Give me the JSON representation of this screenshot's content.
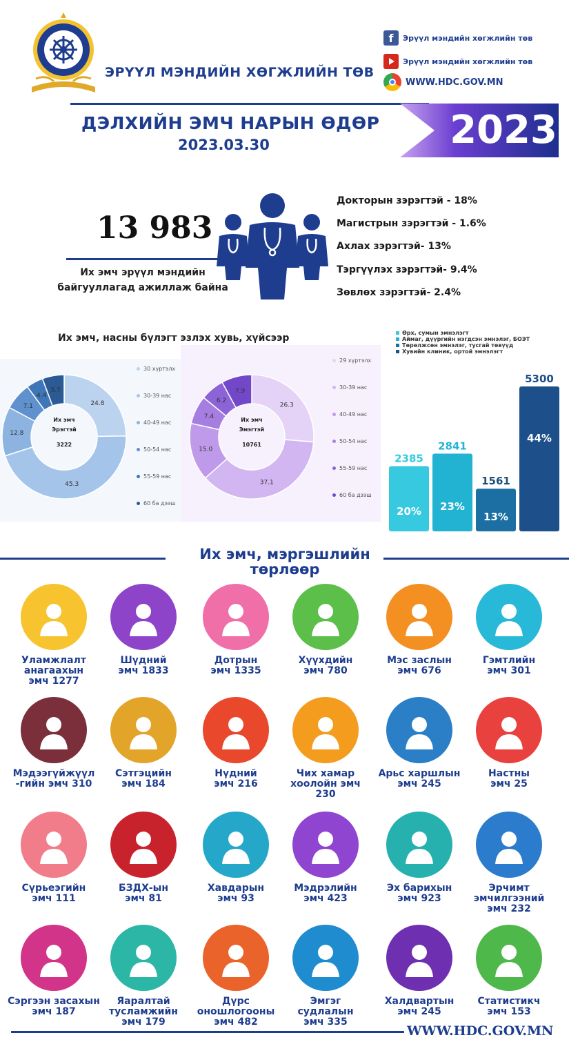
{
  "header": {
    "org_name": "ЭРҮҮЛ МЭНДИЙН ХӨГЖЛИЙН ТӨВ",
    "logo_ring_text": "ЭРҮҮЛ МЭНДИЙН ХӨГЖЛИЙН ТӨВ",
    "facebook": "Эрүүл мэндийн хөгжлийн төв",
    "youtube": "Эрүүл мэндийн хөгжлийн төв",
    "website": "WWW.HDC.GOV.MN",
    "title": "ДЭЛХИЙН ЭМЧ НАРЫН ӨДӨР",
    "date": "2023.03.30",
    "year": "2023"
  },
  "stats": {
    "total": "13 983",
    "total_desc_1": "Их эмч эрүүл мэндийн",
    "total_desc_2": "байгууллагад ажиллаж байна",
    "degrees": [
      "Докторын зэрэгтэй - 18%",
      "Магистрын зэрэгтэй - 1.6%",
      "Ахлах зэрэгтэй- 13%",
      "Тэргүүлэх зэрэгтэй- 9.4%",
      "Зөвлөх зэрэгтэй- 2.4%"
    ]
  },
  "donut_section_title": "Их эмч, насны бүлэгт эзлэх хувь, хүйсээр",
  "chart_data": [
    {
      "type": "pie",
      "variant": "donut",
      "center_label_1": "Их эмч",
      "center_label_2": "Эрэгтэй",
      "center_value": "3222",
      "categories": [
        "30 хүртэлх",
        "30-39 нас",
        "40-49 нас",
        "50-54 нас",
        "55-59 нас",
        "60 ба дээш"
      ],
      "values": [
        24.8,
        45.3,
        12.8,
        7.1,
        4.4,
        5.7
      ],
      "colors": [
        "#bcd3ef",
        "#a5c4ea",
        "#8db3e0",
        "#5f91cf",
        "#3f76b8",
        "#2b5a94"
      ],
      "legend_position": "right"
    },
    {
      "type": "pie",
      "variant": "donut",
      "center_label_1": "Их эмч",
      "center_label_2": "Эмэгтэй",
      "center_value": "10761",
      "categories": [
        "29 хүртэлх",
        "30-39 нас",
        "40-49 нас",
        "50-54 нас",
        "55-59 нас",
        "60 ба дээш"
      ],
      "values": [
        26.3,
        37.1,
        15.0,
        7.4,
        6.2,
        7.9
      ],
      "colors": [
        "#e4d3f7",
        "#d2b6f1",
        "#bf9aea",
        "#a67ee2",
        "#8d63d8",
        "#7348c8"
      ],
      "legend_position": "right"
    },
    {
      "type": "bar",
      "categories": [
        "Өрх, сумын эмнэлэгт",
        "Аймаг, дүүргийн нэгдсэн эмнэлэг, БОЭТ",
        "Төрөлжсөн эмнэлэг, тусгай төвүүд",
        "Хувийн клиник, ортой эмнэлэгт"
      ],
      "values": [
        2385,
        2841,
        1561,
        5300
      ],
      "percent_labels": [
        "20%",
        "23%",
        "13%",
        "44%"
      ],
      "value_labels": [
        "2385",
        "2841",
        "1561",
        "5300"
      ],
      "colors": [
        "#37c9e0",
        "#22b3d3",
        "#1b6fa3",
        "#1d4f8a"
      ],
      "legend_position": "top"
    }
  ],
  "specialties_title_1": "Их эмч, мэргэшлийн",
  "specialties_title_2": "төрлөөр",
  "specialties": [
    {
      "label": "Уламжлалт\nанагаахын\nэмч 1277",
      "icon": "doctor-woman-icon",
      "color": "#f7c32e"
    },
    {
      "label": "Шүдний\nэмч 1833",
      "icon": "dentist-icon",
      "color": "#8e44c9"
    },
    {
      "label": "Дотрын\nэмч 1335",
      "icon": "stethoscope-icon",
      "color": "#f06fa8"
    },
    {
      "label": "Хүүхдийн\nэмч 780",
      "icon": "baby-icon",
      "color": "#5cbf4a"
    },
    {
      "label": "Мэс заслын\nэмч 676",
      "icon": "surgery-icon",
      "color": "#f39021"
    },
    {
      "label": "Гэмтлийн\nэмч 301",
      "icon": "injury-icon",
      "color": "#28b8d8"
    },
    {
      "label": "Мэдээгүйжүүл\n-гийн эмч 310",
      "icon": "anesthesia-icon",
      "color": "#7b2f3a"
    },
    {
      "label": "Сэтгэцийн\nэмч 184",
      "icon": "mental-icon",
      "color": "#e3a42a"
    },
    {
      "label": "Нүдний\nэмч 216",
      "icon": "eye-icon",
      "color": "#e9482c"
    },
    {
      "label": "Чих хамар\nхоолойн эмч\n230",
      "icon": "ent-icon",
      "color": "#f39c1e"
    },
    {
      "label": "Арьс харшлын\nэмч 245",
      "icon": "skin-icon",
      "color": "#2a7fc7"
    },
    {
      "label": "Настны\nэмч 25",
      "icon": "elderly-icon",
      "color": "#e8413e"
    },
    {
      "label": "Сүрьеэгийн\nэмч 111",
      "icon": "lungs-icon",
      "color": "#f27d8a"
    },
    {
      "label": "БЗДХ-ын\nэмч 81",
      "icon": "ribbon-icon",
      "color": "#c8232c"
    },
    {
      "label": "Хавдарын\nэмч 93",
      "icon": "cancer-cell-icon",
      "color": "#24a7c9"
    },
    {
      "label": "Мэдрэлийн\nэмч 423",
      "icon": "reflex-hammer-icon",
      "color": "#8f45d0"
    },
    {
      "label": "Эх барихын\nэмч 923",
      "icon": "mother-baby-icon",
      "color": "#27b1ae"
    },
    {
      "label": "Эрчимт\nэмчилгээний\nэмч 232",
      "icon": "icu-bed-icon",
      "color": "#2b7ccd"
    },
    {
      "label": "Сэргээн засахын\nэмч 187",
      "icon": "massage-icon",
      "color": "#d2348a"
    },
    {
      "label": "Яаралтай\nтусламжийн\nэмч 179",
      "icon": "ambulance-icon",
      "color": "#2bb6a6"
    },
    {
      "label": "Дүрс\nоношлогооны\nэмч 482",
      "icon": "radiology-icon",
      "color": "#e9632a"
    },
    {
      "label": "Эмгэг\nсудлалын\nэмч 335",
      "icon": "microscope-icon",
      "color": "#1e8ccf"
    },
    {
      "label": "Халдвартын\nэмч 245",
      "icon": "cough-icon",
      "color": "#6e2fb0"
    },
    {
      "label": "Статистикч\nэмч 153",
      "icon": "statistics-icon",
      "color": "#4fb84a"
    }
  ],
  "footer_website": "WWW.HDC.GOV.MN"
}
